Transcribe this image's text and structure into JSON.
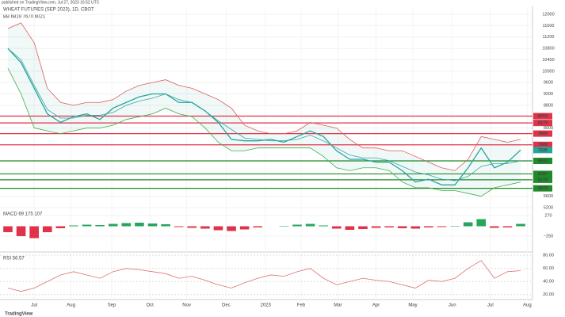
{
  "chart_data": {
    "type": "line",
    "title": "WHEAT FUTURES (SEP 2023), 1D, CBOT",
    "subtitle": "published on TradingView.com, Jul 27, 2023 16:52 UTC",
    "indicator_label": "BB 6819 7670 6021",
    "brand": "TradingView",
    "xticks": [
      {
        "value": 2,
        "label": "Jul"
      },
      {
        "value": 4.8,
        "label": "Aug"
      },
      {
        "value": 7.9,
        "label": "Sep"
      },
      {
        "value": 10.8,
        "label": "Oct"
      },
      {
        "value": 13.6,
        "label": "Nov"
      },
      {
        "value": 16.6,
        "label": "Dec"
      },
      {
        "value": 19.6,
        "label": "2023"
      },
      {
        "value": 22.3,
        "label": "Feb"
      },
      {
        "value": 25.1,
        "label": "Mar"
      },
      {
        "value": 28,
        "label": "Apr"
      },
      {
        "value": 30.8,
        "label": "May"
      },
      {
        "value": 33.8,
        "label": "Jun"
      },
      {
        "value": 36.7,
        "label": "Jul"
      },
      {
        "value": 39.5,
        "label": "Aug"
      }
    ],
    "xlim": [
      -0.3,
      39.6
    ],
    "ylim": [
      5200,
      12225
    ],
    "yticks": [
      12000,
      11600,
      11200,
      10800,
      10400,
      10000,
      9600,
      9200,
      8800,
      8000,
      5600,
      5200
    ],
    "grid": true,
    "series": [
      {
        "name": "Price",
        "color": "#26a69a",
        "values": [
          10800,
          10300,
          9400,
          8500,
          8200,
          8400,
          8500,
          8300,
          8700,
          8900,
          9100,
          9200,
          9200,
          8900,
          8900,
          8600,
          8200,
          7600,
          7550,
          7550,
          7600,
          7500,
          7700,
          7900,
          7700,
          7200,
          6900,
          6900,
          6800,
          6800,
          6500,
          6100,
          6200,
          6000,
          6000,
          6600,
          7300,
          6600,
          6800,
          7226
        ]
      },
      {
        "name": "BB Upper",
        "color": "#e05a5a",
        "values": [
          11500,
          11700,
          11000,
          9400,
          8900,
          8800,
          8900,
          8900,
          9000,
          9300,
          9500,
          9600,
          9700,
          9500,
          9400,
          9200,
          9000,
          8700,
          8100,
          7900,
          7800,
          7800,
          7900,
          8200,
          8100,
          8000,
          7600,
          7300,
          7300,
          7200,
          7200,
          7000,
          6800,
          6600,
          6500,
          6900,
          7700,
          7600,
          7500,
          7600
        ]
      },
      {
        "name": "BB Basis",
        "color": "#3aa6a6",
        "values": [
          10800,
          10400,
          9500,
          8650,
          8350,
          8350,
          8450,
          8450,
          8550,
          8800,
          8950,
          9050,
          9200,
          9000,
          8900,
          8600,
          8250,
          7950,
          7650,
          7600,
          7550,
          7550,
          7600,
          7750,
          7550,
          7300,
          7050,
          6950,
          6950,
          6850,
          6650,
          6450,
          6350,
          6200,
          6150,
          6300,
          6650,
          6750,
          6750,
          6850
        ]
      },
      {
        "name": "BB Lower",
        "color": "#3fae4a",
        "values": [
          10100,
          9200,
          8000,
          7900,
          7800,
          7900,
          8000,
          8000,
          8100,
          8300,
          8400,
          8500,
          8700,
          8500,
          8400,
          8000,
          7500,
          7200,
          7200,
          7300,
          7300,
          7300,
          7300,
          7300,
          7000,
          6600,
          6500,
          6600,
          6600,
          6500,
          6100,
          5900,
          5900,
          5800,
          5800,
          5700,
          5600,
          5900,
          6000,
          6100
        ]
      }
    ],
    "levels": [
      {
        "value": 8419,
        "color": "#e0334a"
      },
      {
        "value": 8179,
        "color": "#e0334a"
      },
      {
        "value": 7804,
        "color": "#e0334a"
      },
      {
        "value": 7409,
        "color": "#e0334a"
      },
      {
        "value": 6844,
        "color": "#1e8a2a"
      },
      {
        "value": 6387,
        "color": "#1e8a2a"
      },
      {
        "value": 6179,
        "color": "#1e8a2a"
      },
      {
        "value": 5879,
        "color": "#1e8a2a"
      }
    ],
    "macd": {
      "label": "MACD 69 175 107",
      "ylim": [
        -650,
        470
      ],
      "yticks": [
        {
          "value": 270,
          "label": "270"
        },
        {
          "value": -250,
          "label": "−250"
        }
      ],
      "up_color": "#26a65a",
      "down_color": "#e0334a",
      "values": [
        -150,
        -250,
        -300,
        -150,
        -50,
        20,
        40,
        30,
        60,
        80,
        90,
        70,
        50,
        -20,
        -40,
        -60,
        -100,
        -120,
        -80,
        -30,
        0,
        10,
        40,
        60,
        20,
        -60,
        -90,
        -70,
        -40,
        -30,
        -50,
        -60,
        -30,
        -20,
        10,
        100,
        180,
        -40,
        -30,
        60
      ]
    },
    "rsi": {
      "label": "RSI 56.57",
      "color": "#e07070",
      "ylim": [
        12.5,
        85
      ],
      "yticks": [
        {
          "value": 80,
          "label": "80.00"
        },
        {
          "value": 60,
          "label": "60.00"
        },
        {
          "value": 40,
          "label": "40.00"
        },
        {
          "value": 20,
          "label": "20.00"
        }
      ],
      "values": [
        30,
        25,
        30,
        40,
        50,
        55,
        50,
        45,
        55,
        60,
        58,
        55,
        52,
        45,
        48,
        42,
        35,
        30,
        38,
        45,
        50,
        48,
        55,
        60,
        45,
        35,
        40,
        45,
        42,
        40,
        35,
        30,
        42,
        40,
        45,
        60,
        72,
        45,
        55,
        56.57
      ]
    }
  }
}
